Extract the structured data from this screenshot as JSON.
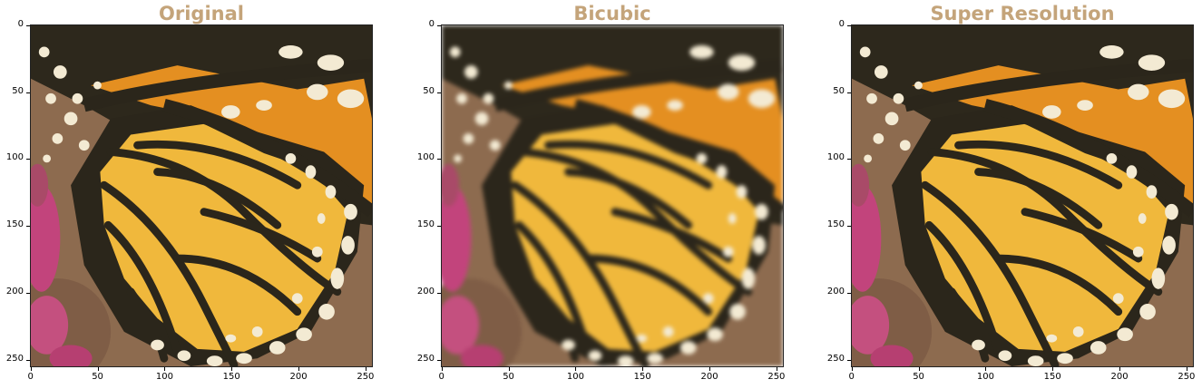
{
  "panels": [
    {
      "title": "Original"
    },
    {
      "title": "Bicubic"
    },
    {
      "title": "Super Resolution"
    }
  ],
  "axes": {
    "x_ticks": [
      "0",
      "50",
      "100",
      "150",
      "200",
      "250"
    ],
    "y_ticks": [
      "0",
      "50",
      "100",
      "150",
      "200",
      "250"
    ]
  },
  "colors": {
    "title": "#c4a47a",
    "wing_orange": "#e48f21",
    "wing_yellow": "#f0b83c",
    "vein_black": "#2b261b",
    "spot_cream": "#f3ead3",
    "flower_pink": "#c2447c",
    "background": "#8a6b4d"
  }
}
